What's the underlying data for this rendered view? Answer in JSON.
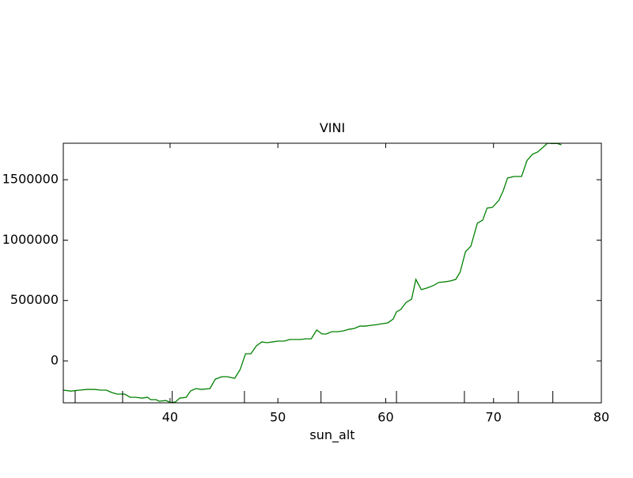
{
  "chart_data": {
    "type": "line",
    "title": "VINI",
    "x_label": "sun_alt",
    "x": [
      30.1,
      30.8,
      31.6,
      32.3,
      33.0,
      33.6,
      34.1,
      34.6,
      35.1,
      35.8,
      36.3,
      36.8,
      37.4,
      37.9,
      38.2,
      38.7,
      39.0,
      39.6,
      40.1,
      40.5,
      40.9,
      41.5,
      41.9,
      42.4,
      42.9,
      43.7,
      44.2,
      44.8,
      45.3,
      46.0,
      46.5,
      47.0,
      47.5,
      48.0,
      48.5,
      49.0,
      49.5,
      50.0,
      50.6,
      51.1,
      51.6,
      52.1,
      52.6,
      53.1,
      53.6,
      54.1,
      54.5,
      55.0,
      55.6,
      56.1,
      56.6,
      57.1,
      57.6,
      58.1,
      58.7,
      59.2,
      59.7,
      60.2,
      60.7,
      61.0,
      61.4,
      61.9,
      62.4,
      62.8,
      63.3,
      63.8,
      64.4,
      64.9,
      65.5,
      66.0,
      66.5,
      66.9,
      67.4,
      67.9,
      68.5,
      69.0,
      69.4,
      69.9,
      70.5,
      70.9,
      71.3,
      71.9,
      72.6,
      73.1,
      73.6,
      74.1,
      74.6,
      75.0,
      75.4,
      75.9,
      76.3
    ],
    "series": [
      {
        "color": "#008000",
        "values": [
          -242000,
          -250000,
          -242000,
          -236000,
          -236000,
          -242000,
          -242000,
          -262000,
          -275000,
          -275000,
          -301000,
          -301000,
          -308000,
          -301000,
          -321000,
          -321000,
          -334000,
          -328000,
          -345000,
          -340000,
          -308000,
          -301000,
          -249000,
          -229000,
          -236000,
          -229000,
          -151000,
          -131000,
          -131000,
          -144000,
          -72000,
          59000,
          59000,
          124000,
          157000,
          151000,
          157000,
          164000,
          164000,
          177000,
          177000,
          177000,
          183000,
          183000,
          256000,
          223000,
          223000,
          242000,
          242000,
          249000,
          262000,
          269000,
          288000,
          288000,
          295000,
          301000,
          308000,
          315000,
          347000,
          406000,
          426000,
          485000,
          511000,
          675000,
          590000,
          603000,
          623000,
          649000,
          655000,
          662000,
          675000,
          734000,
          904000,
          950000,
          1140000,
          1166000,
          1265000,
          1271000,
          1330000,
          1409000,
          1514000,
          1527000,
          1527000,
          1658000,
          1710000,
          1730000,
          1769000,
          1802000,
          1800000,
          1800000,
          1789000
        ]
      }
    ],
    "markers_x": [
      31.2,
      35.6,
      40.2,
      46.9,
      54.0,
      61.0,
      67.3,
      72.3,
      75.5
    ],
    "xlim": [
      30.1,
      80
    ],
    "ylim": [
      -347000,
      1802000
    ],
    "xticks": [
      40,
      50,
      60,
      70,
      80
    ],
    "yticks": [
      0,
      500000,
      1000000,
      1500000
    ],
    "grid": false
  }
}
